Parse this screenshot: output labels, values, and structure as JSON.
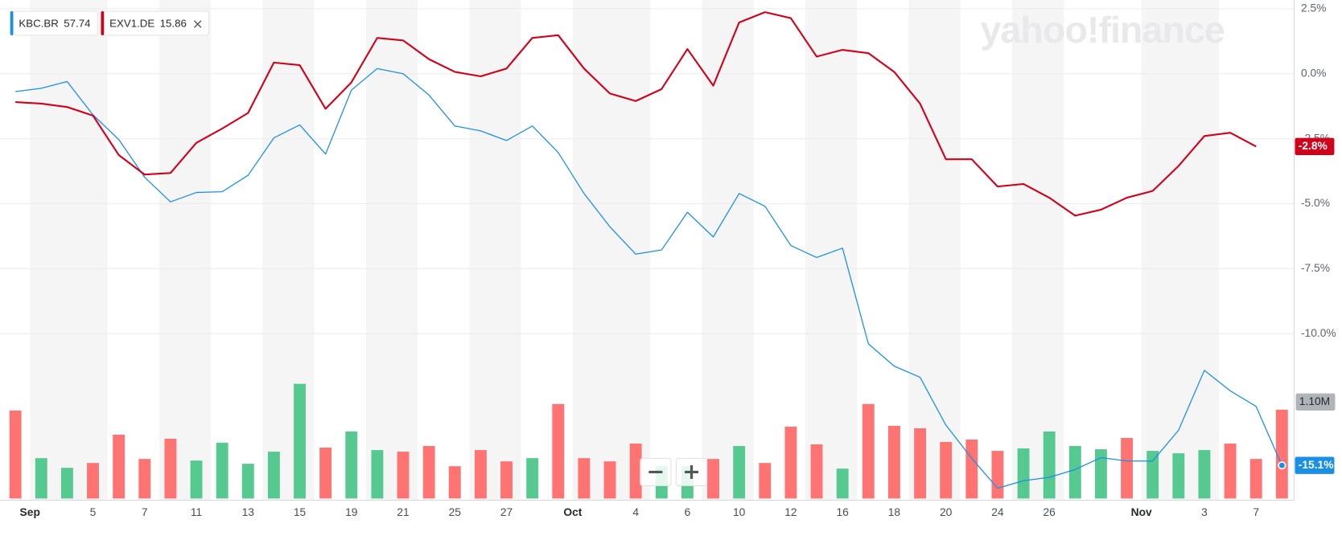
{
  "chart_data": {
    "type": "line",
    "watermark": "yahoo!finance",
    "categories": [
      "Sep",
      null,
      null,
      "5",
      null,
      "7",
      null,
      "11",
      null,
      "13",
      null,
      "15",
      null,
      "19",
      null,
      "21",
      null,
      "25",
      null,
      "27",
      null,
      "Oct",
      null,
      null,
      "4",
      null,
      "6",
      null,
      "10",
      null,
      "12",
      null,
      "16",
      null,
      "18",
      null,
      "20",
      null,
      "24",
      null,
      "26",
      null,
      null,
      "Nov",
      null,
      null,
      "3",
      null,
      "7",
      null
    ],
    "month_labels": [
      "Sep",
      "Oct",
      "Nov"
    ],
    "series": [
      {
        "name": "KBC.BR",
        "quote": 57.74,
        "color": "#1a8fe3",
        "width": 1.2,
        "end_marker": true,
        "values": [
          -0.69,
          -0.56,
          -0.3,
          -1.58,
          -2.53,
          -3.98,
          -4.93,
          -4.57,
          -4.54,
          -3.91,
          -2.47,
          -1.97,
          -3.09,
          -0.63,
          0.2,
          0.0,
          -0.82,
          -2.01,
          -2.2,
          -2.57,
          -2.01,
          -3.03,
          -4.61,
          -5.89,
          -6.94,
          -6.78,
          -5.33,
          -6.28,
          -4.61,
          -5.1,
          -6.61,
          -7.07,
          -6.71,
          -10.39,
          -11.25,
          -11.68,
          -13.52,
          -14.8,
          -15.95,
          -15.66,
          -15.53,
          -15.23,
          -14.77,
          -14.9,
          -14.9,
          -13.72,
          -11.41,
          -12.2,
          -12.8,
          -15.07
        ],
        "value_labels": [
          null,
          null,
          null,
          null,
          null,
          null,
          null,
          null,
          null,
          null,
          null,
          null,
          null,
          null,
          null,
          null,
          null,
          null,
          null,
          null,
          null,
          null,
          null,
          null,
          null,
          null,
          null,
          null,
          null,
          null,
          null,
          null,
          null,
          null,
          null,
          null,
          null,
          null,
          null,
          null,
          null,
          null,
          null,
          null,
          null,
          null,
          null,
          null,
          null,
          "-15.1%"
        ]
      },
      {
        "name": "EXV1.DE",
        "quote": 15.86,
        "color": "#d0021b",
        "width": 2,
        "end_marker": false,
        "values": [
          -1.09,
          -1.15,
          -1.28,
          -1.61,
          -3.13,
          -3.88,
          -3.82,
          -2.66,
          -2.11,
          -1.51,
          0.43,
          0.33,
          -1.35,
          -0.33,
          1.38,
          1.28,
          0.56,
          0.07,
          -0.1,
          0.2,
          1.38,
          1.48,
          0.2,
          -0.76,
          -1.05,
          -0.59,
          0.95,
          -0.46,
          1.97,
          2.37,
          2.14,
          0.66,
          0.92,
          0.79,
          0.07,
          -1.15,
          -3.29,
          -3.29,
          -4.34,
          -4.24,
          -4.77,
          -5.46,
          -5.23,
          -4.77,
          -4.51,
          -3.55,
          -2.4,
          -2.27,
          -2.8,
          null
        ],
        "value_labels": [
          null,
          null,
          null,
          null,
          null,
          null,
          null,
          null,
          null,
          null,
          null,
          null,
          null,
          null,
          null,
          null,
          null,
          null,
          null,
          null,
          null,
          null,
          null,
          null,
          null,
          null,
          null,
          null,
          null,
          null,
          null,
          null,
          null,
          null,
          null,
          null,
          null,
          null,
          null,
          null,
          null,
          null,
          null,
          null,
          null,
          null,
          null,
          null,
          "-2.8%",
          null
        ]
      }
    ],
    "volume": {
      "axis": "y2",
      "values": [
        1.09,
        0.5,
        0.38,
        0.44,
        0.79,
        0.49,
        0.74,
        0.47,
        0.69,
        0.43,
        0.58,
        1.42,
        0.63,
        0.83,
        0.6,
        0.58,
        0.65,
        0.4,
        0.6,
        0.46,
        0.5,
        1.17,
        0.5,
        0.46,
        0.68,
        0.4,
        0.4,
        0.49,
        0.65,
        0.44,
        0.89,
        0.67,
        0.37,
        1.17,
        0.9,
        0.87,
        0.7,
        0.73,
        0.59,
        0.62,
        0.83,
        0.65,
        0.61,
        0.75,
        0.59,
        0.56,
        0.6,
        0.68,
        0.49,
        1.1
      ],
      "colors": [
        "#ff7373",
        "#55c98f",
        "#55c98f",
        "#ff7373",
        "#ff7373",
        "#ff7373",
        "#ff7373",
        "#55c98f",
        "#55c98f",
        "#55c98f",
        "#55c98f",
        "#55c98f",
        "#ff7373",
        "#55c98f",
        "#55c98f",
        "#ff7373",
        "#ff7373",
        "#ff7373",
        "#ff7373",
        "#ff7373",
        "#55c98f",
        "#ff7373",
        "#ff7373",
        "#ff7373",
        "#ff7373",
        "#55c98f",
        "#55c98f",
        "#ff7373",
        "#55c98f",
        "#ff7373",
        "#ff7373",
        "#ff7373",
        "#55c98f",
        "#ff7373",
        "#ff7373",
        "#ff7373",
        "#ff7373",
        "#ff7373",
        "#ff7373",
        "#55c98f",
        "#55c98f",
        "#55c98f",
        "#55c98f",
        "#ff7373",
        "#55c98f",
        "#55c98f",
        "#55c98f",
        "#ff7373",
        "#ff7373",
        "#ff7373"
      ],
      "value_labels": [
        null,
        null,
        null,
        null,
        null,
        null,
        null,
        null,
        null,
        null,
        null,
        null,
        null,
        null,
        null,
        null,
        null,
        null,
        null,
        null,
        null,
        null,
        null,
        null,
        null,
        null,
        null,
        null,
        null,
        null,
        null,
        null,
        null,
        null,
        null,
        null,
        null,
        null,
        null,
        null,
        null,
        null,
        null,
        null,
        null,
        null,
        null,
        null,
        null,
        "1.10M"
      ]
    },
    "ylim": [
      -16.41,
      2.83
    ],
    "yticks": [
      {
        "value": 2.5,
        "label": "2.5%"
      },
      {
        "value": 0,
        "label": "0.0%"
      },
      {
        "value": -2.5,
        "label": "-2.5%"
      },
      {
        "value": -5,
        "label": "-5.0%"
      },
      {
        "value": -7.5,
        "label": "-7.5%"
      },
      {
        "value": -10,
        "label": "-10.0%"
      }
    ],
    "y2lim": [
      0,
      6.17
    ],
    "grid": true
  }
}
